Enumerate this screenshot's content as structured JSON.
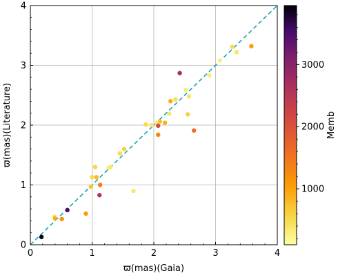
{
  "chart_data": {
    "type": "scatter",
    "xlabel": "ϖ(mas)(Gaia)",
    "ylabel": "ϖ(mas)(Literature)",
    "xlim": [
      0,
      4
    ],
    "ylim": [
      0,
      4
    ],
    "x_ticks": [
      "0",
      "1",
      "2",
      "3",
      "4"
    ],
    "y_ticks": [
      "0",
      "1",
      "2",
      "3",
      "4"
    ],
    "grid": true,
    "reference_line": {
      "kind": "one-to-one",
      "x": [
        0,
        4
      ],
      "y": [
        0,
        4
      ],
      "style": "dashed",
      "color": "#17a2b0"
    },
    "colorbar": {
      "label": "Memb",
      "colormap": "inferno",
      "range": [
        100,
        3950
      ],
      "ticks": [
        "1000",
        "2000",
        "3000"
      ],
      "tick_values": [
        1000,
        2000,
        3000
      ]
    },
    "points": [
      {
        "x": 0.18,
        "y": 0.13,
        "memb": 3900
      },
      {
        "x": 0.39,
        "y": 0.47,
        "memb": 400
      },
      {
        "x": 0.4,
        "y": 0.44,
        "memb": 900
      },
      {
        "x": 0.51,
        "y": 0.43,
        "memb": 1150
      },
      {
        "x": 0.6,
        "y": 0.58,
        "memb": 3500
      },
      {
        "x": 0.9,
        "y": 0.52,
        "memb": 1050
      },
      {
        "x": 0.98,
        "y": 0.97,
        "memb": 700
      },
      {
        "x": 1.0,
        "y": 1.13,
        "memb": 500
      },
      {
        "x": 1.05,
        "y": 1.3,
        "memb": 550
      },
      {
        "x": 1.07,
        "y": 1.13,
        "memb": 800
      },
      {
        "x": 1.13,
        "y": 1.0,
        "memb": 1400
      },
      {
        "x": 1.12,
        "y": 0.83,
        "memb": 2550
      },
      {
        "x": 1.27,
        "y": 1.29,
        "memb": 300
      },
      {
        "x": 1.3,
        "y": 1.3,
        "memb": 350
      },
      {
        "x": 1.45,
        "y": 1.53,
        "memb": 500
      },
      {
        "x": 1.52,
        "y": 1.6,
        "memb": 600
      },
      {
        "x": 1.67,
        "y": 0.9,
        "memb": 350
      },
      {
        "x": 1.87,
        "y": 2.01,
        "memb": 500
      },
      {
        "x": 1.96,
        "y": 2.0,
        "memb": 350
      },
      {
        "x": 2.05,
        "y": 2.04,
        "memb": 300
      },
      {
        "x": 2.07,
        "y": 1.99,
        "memb": 2100
      },
      {
        "x": 2.07,
        "y": 1.84,
        "memb": 1300
      },
      {
        "x": 2.1,
        "y": 2.06,
        "memb": 700
      },
      {
        "x": 2.18,
        "y": 2.04,
        "memb": 900
      },
      {
        "x": 2.25,
        "y": 2.19,
        "memb": 350
      },
      {
        "x": 2.27,
        "y": 2.4,
        "memb": 950
      },
      {
        "x": 2.35,
        "y": 2.43,
        "memb": 450
      },
      {
        "x": 2.42,
        "y": 2.87,
        "memb": 2700
      },
      {
        "x": 2.52,
        "y": 2.59,
        "memb": 300
      },
      {
        "x": 2.57,
        "y": 2.48,
        "memb": 400
      },
      {
        "x": 2.55,
        "y": 2.18,
        "memb": 600
      },
      {
        "x": 2.65,
        "y": 1.91,
        "memb": 1600
      },
      {
        "x": 2.9,
        "y": 2.83,
        "memb": 300
      },
      {
        "x": 3.07,
        "y": 3.08,
        "memb": 250
      },
      {
        "x": 3.27,
        "y": 3.31,
        "memb": 500
      },
      {
        "x": 3.34,
        "y": 3.22,
        "memb": 400
      },
      {
        "x": 3.58,
        "y": 3.32,
        "memb": 1050
      }
    ]
  }
}
